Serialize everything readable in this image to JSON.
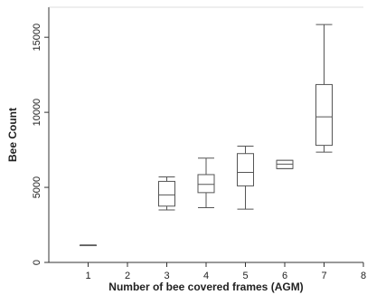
{
  "chart_data": {
    "type": "box",
    "title": "",
    "xlabel": "Number of bee covered frames (AGM)",
    "ylabel": "Bee Count",
    "xlim": [
      0,
      8
    ],
    "ylim": [
      0,
      17000
    ],
    "x_ticks": [
      1,
      2,
      3,
      4,
      5,
      6,
      7,
      8
    ],
    "y_ticks": [
      0,
      5000,
      10000,
      15000
    ],
    "grid": false,
    "boxes": [
      {
        "x": 1,
        "min": 1150,
        "q1": 1150,
        "median": 1150,
        "q3": 1150,
        "max": 1150
      },
      {
        "x": 3,
        "min": 3500,
        "q1": 3750,
        "median": 4500,
        "q3": 5400,
        "max": 5700
      },
      {
        "x": 4,
        "min": 3650,
        "q1": 4650,
        "median": 5200,
        "q3": 5850,
        "max": 6950
      },
      {
        "x": 5,
        "min": 3550,
        "q1": 5100,
        "median": 6000,
        "q3": 7250,
        "max": 7750
      },
      {
        "x": 6,
        "min": 6250,
        "q1": 6250,
        "median": 6550,
        "q3": 6800,
        "max": 6800
      },
      {
        "x": 7,
        "min": 7350,
        "q1": 7800,
        "median": 9700,
        "q3": 11850,
        "max": 15850
      }
    ]
  }
}
